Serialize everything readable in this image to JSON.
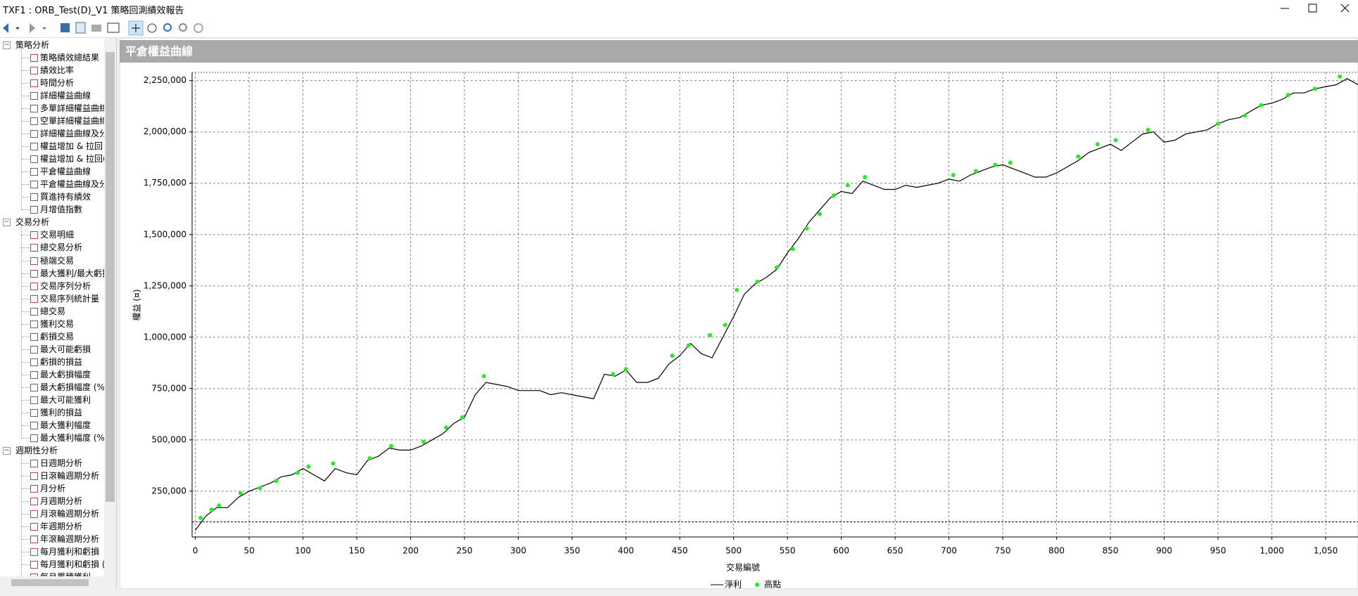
{
  "window": {
    "title": "TXF1 : ORB_Test(D)_V1 策略回測績效報告"
  },
  "tree": {
    "groups": [
      {
        "label": "策略分析",
        "items": [
          "策略績效總結果",
          "績效比率",
          "時間分析",
          "詳細權益曲線",
          "多單詳細權益曲線",
          "空單詳細權益曲線",
          "詳細權益曲線及分",
          "權益增加 & 拉回",
          "權益增加 & 拉回(",
          "平倉權益曲線",
          "平倉權益曲線及分",
          "買進持有績效",
          "月增值指數"
        ]
      },
      {
        "label": "交易分析",
        "items": [
          "交易明細",
          "總交易分析",
          "極端交易",
          "最大獲利/最大虧損",
          "交易序列分析",
          "交易序列統計量",
          "總交易",
          "獲利交易",
          "虧損交易",
          "最大可能虧損",
          "虧損的損益",
          "最大虧損幅度",
          "最大虧損幅度 (%",
          "最大可能獲利",
          "獲利的損益",
          "最大獲利幅度",
          "最大獲利幅度 (%"
        ]
      },
      {
        "label": "週期性分析",
        "items": [
          "日週期分析",
          "日滾輪週期分析",
          "月分析",
          "月週期分析",
          "月滾輪週期分析",
          "年週期分析",
          "年滾輪週期分析",
          "每月獲利和虧損",
          "每月獲利和虧損 (",
          "每月累積獲利"
        ]
      }
    ]
  },
  "panel": {
    "title": "平倉權益曲線"
  },
  "chart_data": {
    "type": "line",
    "x_label": "交易編號",
    "y_label": "權益 (¤)",
    "xlim": [
      -3,
      1080
    ],
    "ylim": [
      27000,
      2290000
    ],
    "xticks": [
      0,
      50,
      100,
      150,
      200,
      250,
      300,
      350,
      400,
      450,
      500,
      550,
      600,
      650,
      700,
      750,
      800,
      850,
      900,
      950,
      {
        "value": 1000,
        "label": "1,000"
      },
      {
        "value": 1050,
        "label": "1,050"
      }
    ],
    "yticks": [
      {
        "value": 250000,
        "label": "250,000"
      },
      {
        "value": 500000,
        "label": "500,000"
      },
      {
        "value": 750000,
        "label": "750,000"
      },
      {
        "value": 1000000,
        "label": "1,000,000"
      },
      {
        "value": 1250000,
        "label": "1,250,000"
      },
      {
        "value": 1500000,
        "label": "1,500,000"
      },
      {
        "value": 1750000,
        "label": "1,750,000"
      },
      {
        "value": 2000000,
        "label": "2,000,000"
      },
      {
        "value": 2250000,
        "label": "2,250,000"
      }
    ],
    "grid": true,
    "reference_line": 100000,
    "series": [
      {
        "name": "淨利",
        "color": "#000000",
        "x": [
          0,
          10,
          20,
          30,
          40,
          50,
          60,
          70,
          80,
          90,
          100,
          110,
          120,
          130,
          140,
          150,
          160,
          170,
          180,
          190,
          200,
          210,
          220,
          230,
          240,
          250,
          260,
          270,
          280,
          290,
          300,
          310,
          320,
          330,
          340,
          350,
          360,
          370,
          380,
          390,
          400,
          410,
          420,
          430,
          440,
          450,
          460,
          470,
          480,
          490,
          500,
          510,
          520,
          530,
          540,
          550,
          560,
          570,
          580,
          590,
          600,
          610,
          620,
          630,
          640,
          650,
          660,
          670,
          680,
          690,
          700,
          710,
          720,
          730,
          740,
          750,
          760,
          770,
          780,
          790,
          800,
          810,
          820,
          830,
          840,
          850,
          860,
          870,
          880,
          890,
          900,
          910,
          920,
          930,
          940,
          950,
          960,
          970,
          980,
          990,
          1000,
          1010,
          1020,
          1030,
          1040,
          1050,
          1060,
          1070,
          1080
        ],
        "values": [
          60000,
          130000,
          170000,
          170000,
          220000,
          250000,
          270000,
          290000,
          320000,
          330000,
          360000,
          330000,
          300000,
          360000,
          340000,
          330000,
          400000,
          420000,
          460000,
          450000,
          450000,
          470000,
          500000,
          530000,
          580000,
          610000,
          720000,
          780000,
          770000,
          760000,
          740000,
          740000,
          740000,
          720000,
          730000,
          720000,
          710000,
          700000,
          820000,
          810000,
          840000,
          780000,
          780000,
          800000,
          870000,
          910000,
          970000,
          920000,
          900000,
          1000000,
          1100000,
          1210000,
          1260000,
          1290000,
          1330000,
          1410000,
          1480000,
          1560000,
          1620000,
          1680000,
          1710000,
          1700000,
          1760000,
          1740000,
          1720000,
          1720000,
          1740000,
          1730000,
          1740000,
          1750000,
          1770000,
          1760000,
          1790000,
          1810000,
          1830000,
          1840000,
          1820000,
          1800000,
          1780000,
          1780000,
          1800000,
          1830000,
          1860000,
          1900000,
          1920000,
          1940000,
          1910000,
          1950000,
          1990000,
          2000000,
          1950000,
          1960000,
          1990000,
          2000000,
          2010000,
          2040000,
          2060000,
          2070000,
          2100000,
          2130000,
          2140000,
          2160000,
          2190000,
          2190000,
          2210000,
          2220000,
          2230000,
          2260000,
          2230000
        ]
      },
      {
        "name": "高點",
        "color": "#22ee22",
        "type": "scatter",
        "x": [
          5,
          15,
          22,
          42,
          60,
          75,
          95,
          105,
          128,
          162,
          182,
          212,
          233,
          248,
          268,
          388,
          400,
          443,
          458,
          478,
          492,
          503,
          522,
          540,
          555,
          568,
          580,
          593,
          606,
          622,
          704,
          725,
          743,
          757,
          820,
          838,
          855,
          885,
          950,
          975,
          990,
          1015,
          1040,
          1063
        ],
        "values": [
          120000,
          160000,
          180000,
          240000,
          265000,
          300000,
          340000,
          370000,
          385000,
          410000,
          470000,
          490000,
          560000,
          610000,
          810000,
          820000,
          845000,
          910000,
          960000,
          1010000,
          1060000,
          1230000,
          1270000,
          1340000,
          1430000,
          1530000,
          1600000,
          1690000,
          1740000,
          1780000,
          1790000,
          1810000,
          1840000,
          1850000,
          1880000,
          1940000,
          1960000,
          2010000,
          2040000,
          2080000,
          2130000,
          2180000,
          2210000,
          2270000
        ]
      }
    ]
  }
}
